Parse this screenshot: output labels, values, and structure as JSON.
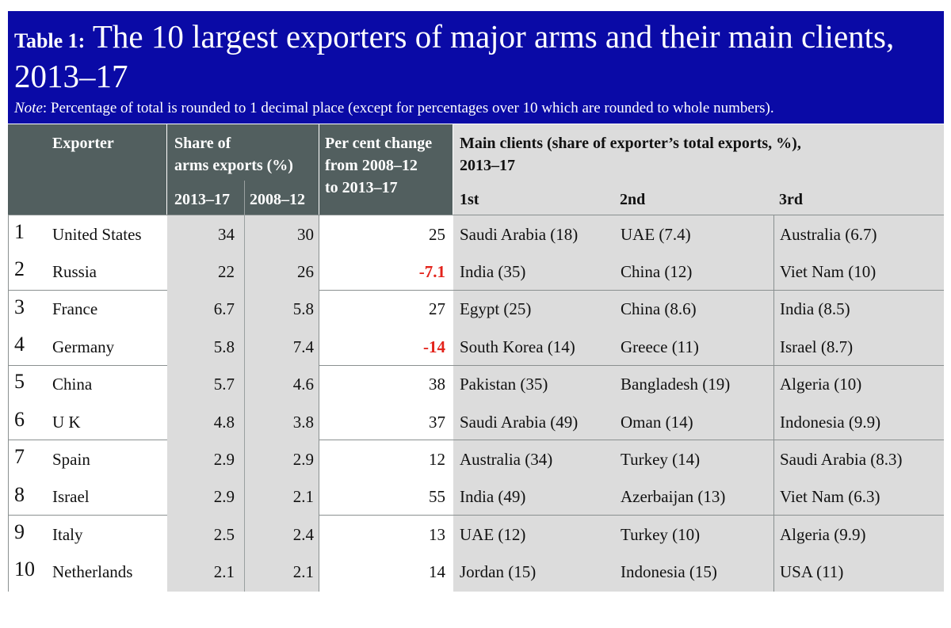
{
  "title_lead": "Table 1:",
  "title_main": " The 10 largest exporters of major arms and their main clients, 2013–17",
  "note_label": "Note",
  "note_text": ": Percentage of total is rounded to 1 decimal place (except for percentages over 10 which are rounded to whole numbers).",
  "headers": {
    "exporter": "Exporter",
    "share_line1": "Share of",
    "share_line2": "arms exports (%)",
    "period_recent": "2013–17",
    "period_prior": "2008–12",
    "change_line1": "Per cent change",
    "change_line2": "from 2008–12",
    "change_line3": "to 2013–17",
    "clients_line1": "Main clients (share of exporter’s total exports, %),",
    "clients_line2": "2013–17",
    "first": "1st",
    "second": "2nd",
    "third": "3rd"
  },
  "colors": {
    "banner": "#0a0aa6",
    "header_dark": "#525f5f",
    "cell_grey": "#dcdcdc",
    "negative": "#e3231b"
  },
  "rows": [
    {
      "rank": "1",
      "exporter": "United States",
      "share_1317": "34",
      "share_0812": "30",
      "change": "25",
      "negative": false,
      "c1": "Saudi Arabia (18)",
      "c2": "UAE (7.4)",
      "c3": "Australia (6.7)"
    },
    {
      "rank": "2",
      "exporter": "Russia",
      "share_1317": "22",
      "share_0812": "26",
      "change": "-7.1",
      "negative": true,
      "c1": "India (35)",
      "c2": "China (12)",
      "c3": "Viet Nam (10)"
    },
    {
      "rank": "3",
      "exporter": "France",
      "share_1317": "6.7",
      "share_0812": "5.8",
      "change": "27",
      "negative": false,
      "c1": "Egypt (25)",
      "c2": "China (8.6)",
      "c3": "India (8.5)"
    },
    {
      "rank": "4",
      "exporter": "Germany",
      "share_1317": "5.8",
      "share_0812": "7.4",
      "change": "-14",
      "negative": true,
      "c1": "South Korea (14)",
      "c2": "Greece (11)",
      "c3": "Israel (8.7)"
    },
    {
      "rank": "5",
      "exporter": "China",
      "share_1317": "5.7",
      "share_0812": "4.6",
      "change": "38",
      "negative": false,
      "c1": "Pakistan (35)",
      "c2": "Bangladesh (19)",
      "c3": "Algeria (10)"
    },
    {
      "rank": "6",
      "exporter": "U K",
      "share_1317": "4.8",
      "share_0812": "3.8",
      "change": "37",
      "negative": false,
      "c1": "Saudi Arabia (49)",
      "c2": "Oman (14)",
      "c3": "Indonesia (9.9)"
    },
    {
      "rank": "7",
      "exporter": "Spain",
      "share_1317": "2.9",
      "share_0812": "2.9",
      "change": "12",
      "negative": false,
      "c1": "Australia (34)",
      "c2": "Turkey (14)",
      "c3": "Saudi Arabia (8.3)"
    },
    {
      "rank": "8",
      "exporter": "Israel",
      "share_1317": "2.9",
      "share_0812": "2.1",
      "change": "55",
      "negative": false,
      "c1": "India (49)",
      "c2": "Azerbaijan (13)",
      "c3": "Viet Nam (6.3)"
    },
    {
      "rank": "9",
      "exporter": "Italy",
      "share_1317": "2.5",
      "share_0812": "2.4",
      "change": "13",
      "negative": false,
      "c1": "UAE (12)",
      "c2": "Turkey (10)",
      "c3": "Algeria (9.9)"
    },
    {
      "rank": "10",
      "exporter": "Netherlands",
      "share_1317": "2.1",
      "share_0812": "2.1",
      "change": "14",
      "negative": false,
      "c1": "Jordan (15)",
      "c2": "Indonesia (15)",
      "c3": "USA (11)"
    }
  ]
}
